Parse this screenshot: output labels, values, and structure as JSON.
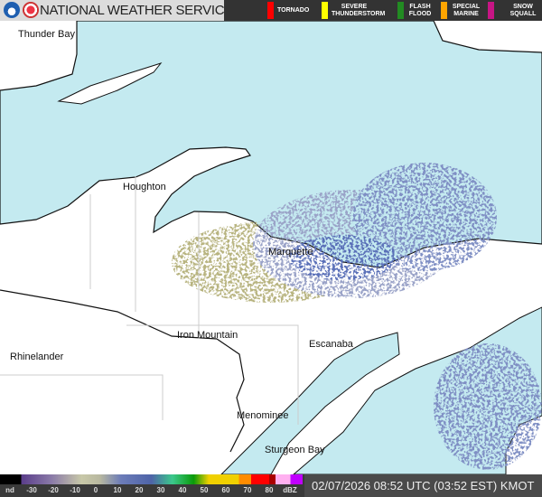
{
  "header": {
    "title": "NATIONAL WEATHER SERVICE",
    "logos": [
      "noaa-logo",
      "nws-logo"
    ],
    "warnings": [
      {
        "label": "TORNADO",
        "color": "#ff0000"
      },
      {
        "label": "SEVERE THUNDERSTORM",
        "color": "#ffff00"
      },
      {
        "label": "FLASH FLOOD",
        "color": "#228b22"
      },
      {
        "label": "SPECIAL MARINE",
        "color": "#ffa500"
      },
      {
        "label": "SNOW SQUALL",
        "color": "#c71585"
      }
    ]
  },
  "map": {
    "water_color": "#c4eaf0",
    "land_color": "#ffffff",
    "places": [
      "Thunder Bay",
      "Houghton",
      "Marquette",
      "Iron Mountain",
      "Escanaba",
      "Rhinelander",
      "Menominee",
      "Sturgeon Bay"
    ]
  },
  "legend": {
    "ticks": [
      "nd",
      "-30",
      "-20",
      "-10",
      "0",
      "10",
      "20",
      "30",
      "40",
      "50",
      "60",
      "70",
      "80",
      "dBZ"
    ]
  },
  "timestamp": "02/07/2026 08:52 UTC (03:52 EST) KMOT"
}
